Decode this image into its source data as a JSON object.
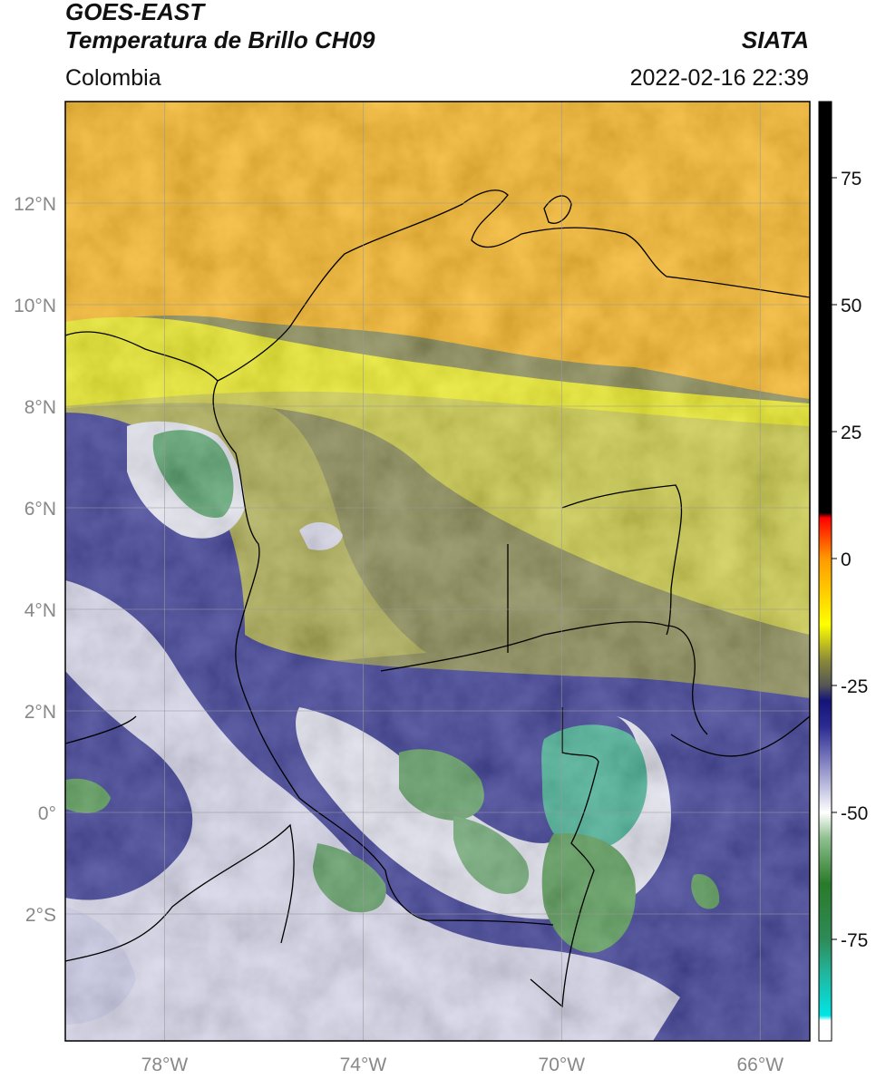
{
  "header": {
    "satellite": "GOES-EAST",
    "product": "Temperatura de Brillo CH09",
    "brand": "SIATA",
    "region": "Colombia",
    "timestamp": "2022-02-16 22:39"
  },
  "map": {
    "lon_range": [
      -80,
      -65
    ],
    "lat_range": [
      -4.5,
      14
    ],
    "lon_ticks": [
      {
        "value": -78,
        "label": "78°W"
      },
      {
        "value": -74,
        "label": "74°W"
      },
      {
        "value": -70,
        "label": "70°W"
      },
      {
        "value": -66,
        "label": "66°W"
      }
    ],
    "lat_ticks": [
      {
        "value": 12,
        "label": "12°N"
      },
      {
        "value": 10,
        "label": "10°N"
      },
      {
        "value": 8,
        "label": "8°N"
      },
      {
        "value": 6,
        "label": "6°N"
      },
      {
        "value": 4,
        "label": "4°N"
      },
      {
        "value": 2,
        "label": "2°N"
      },
      {
        "value": 0,
        "label": "0°"
      },
      {
        "value": -2,
        "label": "2°S"
      }
    ],
    "grid": true
  },
  "colorbar": {
    "range": [
      -95,
      90
    ],
    "ticks": [
      {
        "value": 75,
        "label": "75"
      },
      {
        "value": 50,
        "label": "50"
      },
      {
        "value": 25,
        "label": "25"
      },
      {
        "value": 0,
        "label": "0"
      },
      {
        "value": -25,
        "label": "-25"
      },
      {
        "value": -50,
        "label": "-50"
      },
      {
        "value": -75,
        "label": "-75"
      }
    ],
    "stops": [
      {
        "value": -95,
        "color": "#ffffff"
      },
      {
        "value": -91,
        "color": "#ffffff"
      },
      {
        "value": -90,
        "color": "#00e5e5"
      },
      {
        "value": -82,
        "color": "#20b8a0"
      },
      {
        "value": -75,
        "color": "#2e8b57"
      },
      {
        "value": -64,
        "color": "#2a7a2a"
      },
      {
        "value": -55,
        "color": "#90c090"
      },
      {
        "value": -50,
        "color": "#ffffff"
      },
      {
        "value": -40,
        "color": "#8080c0"
      },
      {
        "value": -33,
        "color": "#2a2a90"
      },
      {
        "value": -28,
        "color": "#141478"
      },
      {
        "value": -25,
        "color": "#555555"
      },
      {
        "value": -20,
        "color": "#8a8a3a"
      },
      {
        "value": -13,
        "color": "#ffff00"
      },
      {
        "value": 0,
        "color": "#ff9900"
      },
      {
        "value": 8,
        "color": "#ff0000"
      },
      {
        "value": 9,
        "color": "#000000"
      },
      {
        "value": 90,
        "color": "#000000"
      }
    ]
  }
}
